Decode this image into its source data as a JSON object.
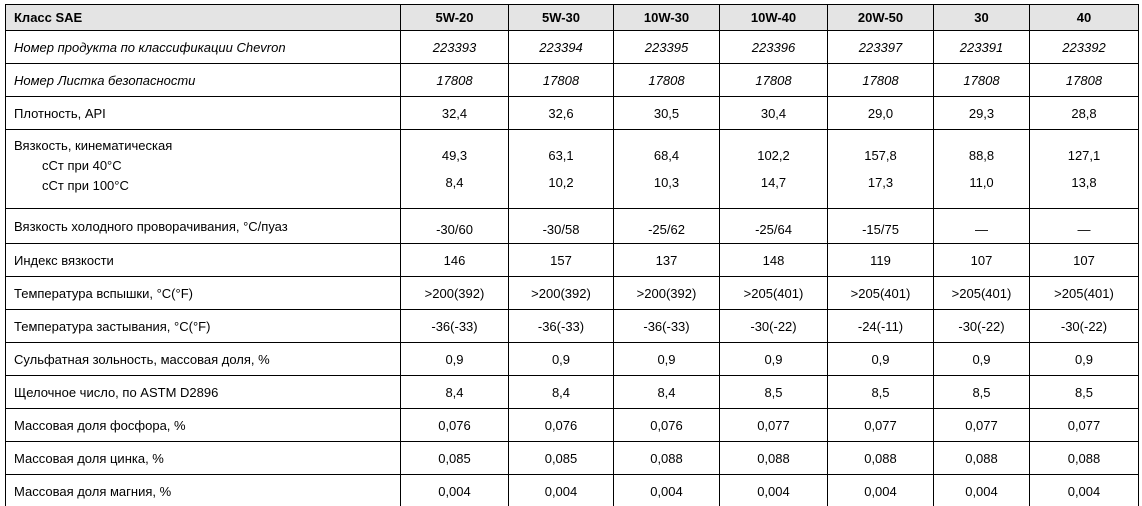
{
  "table": {
    "header_label": "Класс SAE",
    "columns": [
      "5W-20",
      "5W-30",
      "10W-30",
      "10W-40",
      "20W-50",
      "30",
      "40"
    ],
    "rows": [
      {
        "italic": true,
        "label": "Номер продукта по классификации Chevron",
        "values": [
          "223393",
          "223394",
          "223395",
          "223396",
          "223397",
          "223391",
          "223392"
        ]
      },
      {
        "italic": true,
        "label": "Номер Листка безопасности",
        "values": [
          "17808",
          "17808",
          "17808",
          "17808",
          "17808",
          "17808",
          "17808"
        ]
      },
      {
        "label": "Плотность, API",
        "values": [
          "32,4",
          "32,6",
          "30,5",
          "30,4",
          "29,0",
          "29,3",
          "28,8"
        ]
      },
      {
        "type": "group",
        "label": "Вязкость, кинематическая",
        "subrows": [
          {
            "label": "сСт при 40°C",
            "values": [
              "49,3",
              "63,1",
              "68,4",
              "102,2",
              "157,8",
              "88,8",
              "127,1"
            ]
          },
          {
            "label": "сСт при 100°C",
            "values": [
              "8,4",
              "10,2",
              "10,3",
              "14,7",
              "17,3",
              "11,0",
              "13,8"
            ]
          }
        ]
      },
      {
        "valign": "bottom",
        "label": "Вязкость холодного проворачивания, °C/пуаз",
        "values": [
          "-30/60",
          "-30/58",
          "-25/62",
          "-25/64",
          "-15/75",
          "—",
          "—"
        ]
      },
      {
        "label": "Индекс вязкости",
        "values": [
          "146",
          "157",
          "137",
          "148",
          "119",
          "107",
          "107"
        ]
      },
      {
        "label": "Температура вспышки, °C(°F)",
        "values": [
          ">200(392)",
          ">200(392)",
          ">200(392)",
          ">205(401)",
          ">205(401)",
          ">205(401)",
          ">205(401)"
        ]
      },
      {
        "label": "Температура застывания, °C(°F)",
        "values": [
          "-36(-33)",
          "-36(-33)",
          "-36(-33)",
          "-30(-22)",
          "-24(-11)",
          "-30(-22)",
          "-30(-22)"
        ]
      },
      {
        "label": "Сульфатная зольность, массовая доля, %",
        "values": [
          "0,9",
          "0,9",
          "0,9",
          "0,9",
          "0,9",
          "0,9",
          "0,9"
        ]
      },
      {
        "label": "Щелочное число, по ASTM D2896",
        "values": [
          "8,4",
          "8,4",
          "8,4",
          "8,5",
          "8,5",
          "8,5",
          "8,5"
        ]
      },
      {
        "label": "Массовая доля фосфора, %",
        "values": [
          "0,076",
          "0,076",
          "0,076",
          "0,077",
          "0,077",
          "0,077",
          "0,077"
        ]
      },
      {
        "label": "Массовая доля цинка, %",
        "values": [
          "0,085",
          "0,085",
          "0,088",
          "0,088",
          "0,088",
          "0,088",
          "0,088"
        ]
      },
      {
        "label": "Массовая доля магния, %",
        "values": [
          "0,004",
          "0,004",
          "0,004",
          "0,004",
          "0,004",
          "0,004",
          "0,004"
        ]
      }
    ]
  },
  "colors": {
    "header_background": "#e4e4e4",
    "border": "#000000",
    "text": "#000000"
  }
}
